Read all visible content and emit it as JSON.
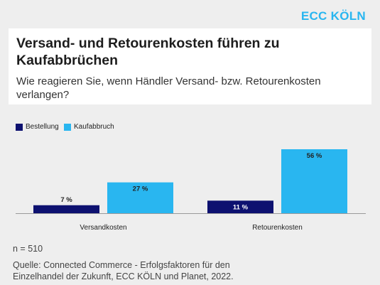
{
  "brand": "ECC KÖLN",
  "header": {
    "title": "Versand- und Retourenkosten führen zu Kaufabbrüchen",
    "subtitle": "Wie reagieren Sie, wenn Händler Versand- bzw. Retourenkosten verlangen?"
  },
  "footer": {
    "n": "n = 510",
    "source": "Quelle: Connected Commerce - Erfolgsfaktoren für den Einzelhandel der Zukunft, ECC KÖLN und Planet, 2022."
  },
  "colors": {
    "accent": "#29b6f0",
    "bestellung": "#0d1170",
    "kaufabbruch": "#29b6f0"
  },
  "chart_data": {
    "type": "bar",
    "categories": [
      "Versandkosten",
      "Retourenkosten"
    ],
    "series": [
      {
        "name": "Bestellung",
        "values": [
          7,
          11
        ],
        "labels": [
          "7 %",
          "11 %"
        ]
      },
      {
        "name": "Kaufabbruch",
        "values": [
          27,
          56
        ],
        "labels": [
          "27 %",
          "56 %"
        ]
      }
    ],
    "ylim": [
      0,
      56
    ],
    "grid": false,
    "legend": "top-left"
  }
}
